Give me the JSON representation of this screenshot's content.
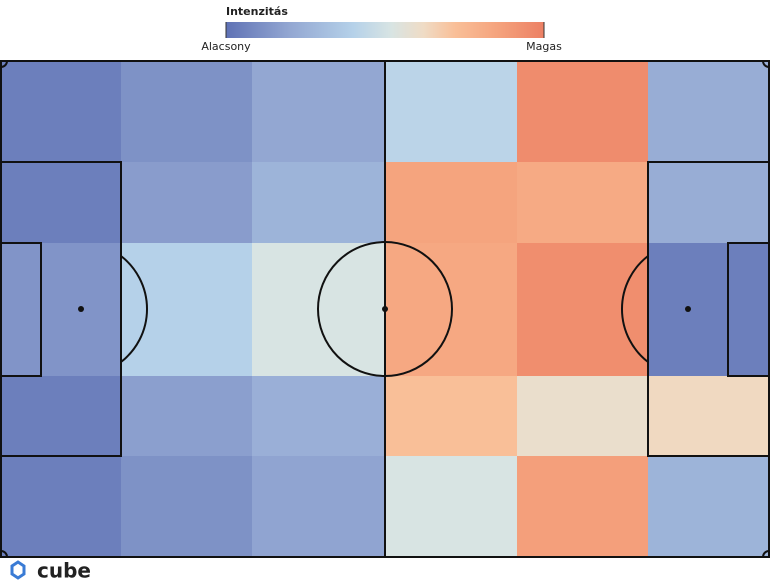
{
  "chart_data": {
    "type": "heatmap",
    "colorbar_title": "Intenzitás",
    "zlim": [
      0,
      1
    ],
    "zticks": [
      {
        "value": 0,
        "label": "Alacsony"
      },
      {
        "value": 1,
        "label": "Magas"
      }
    ],
    "colorscale": [
      [
        0,
        "#5f72b5"
      ],
      [
        0.2,
        "#93a7d2"
      ],
      [
        0.4,
        "#b5d1e9"
      ],
      [
        0.52,
        "#d8e4e3"
      ],
      [
        0.62,
        "#efdcc6"
      ],
      [
        0.72,
        "#f9bf98"
      ],
      [
        0.85,
        "#f5a47e"
      ],
      [
        1,
        "#ec8064"
      ]
    ],
    "values": [
      [
        0.05,
        0.12,
        0.2,
        0.42,
        0.95,
        0.23
      ],
      [
        0.05,
        0.16,
        0.26,
        0.85,
        0.82,
        0.23
      ],
      [
        0.13,
        0.4,
        0.52,
        0.83,
        0.94,
        0.05
      ],
      [
        0.05,
        0.17,
        0.24,
        0.72,
        0.6,
        0.63
      ],
      [
        0.05,
        0.12,
        0.19,
        0.52,
        0.87,
        0.26
      ]
    ]
  },
  "logo": "cube"
}
